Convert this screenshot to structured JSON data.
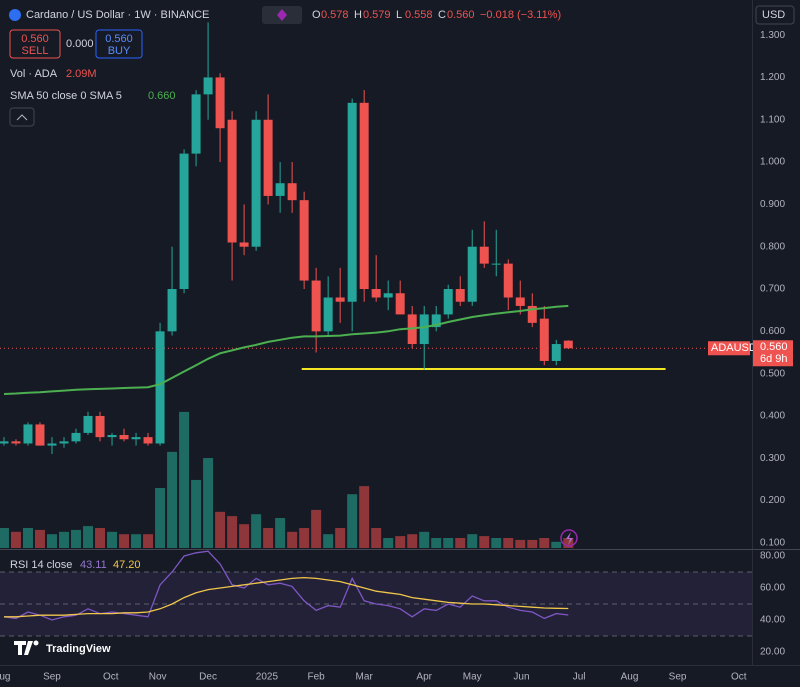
{
  "chart_data": {
    "type": "candlestick",
    "title": "Cardano / US Dollar · 1W · BINANCE",
    "header_fields": [
      {
        "key": "O",
        "label": "0.578"
      },
      {
        "key": "H",
        "label": "0.579"
      },
      {
        "key": "L",
        "label": "0.558"
      },
      {
        "key": "C",
        "label": "0.560"
      }
    ],
    "change": "−0.018 (−3.11%)",
    "sell": {
      "price": "0.560",
      "label": "SELL"
    },
    "spread": "0.000",
    "buy": {
      "price": "0.560",
      "label": "BUY"
    },
    "currency": "USD",
    "categories": [
      null,
      null,
      null,
      null,
      null,
      null,
      null,
      null,
      null,
      null,
      null,
      null,
      null,
      null,
      null,
      null,
      null,
      null,
      null,
      null,
      null,
      null,
      null,
      null,
      null,
      null,
      null,
      null,
      null,
      null,
      null,
      null,
      null,
      null,
      null,
      null,
      null,
      null,
      null,
      null,
      null,
      null,
      null,
      null,
      null,
      null,
      null,
      null
    ],
    "open": [
      0.335,
      0.34,
      0.335,
      0.38,
      0.33,
      0.335,
      0.34,
      0.36,
      0.4,
      0.35,
      0.355,
      0.345,
      0.35,
      0.335,
      0.6,
      0.7,
      1.02,
      1.16,
      1.2,
      1.1,
      0.81,
      0.8,
      1.1,
      0.92,
      0.95,
      0.91,
      0.72,
      0.6,
      0.68,
      0.67,
      1.14,
      0.7,
      0.68,
      0.69,
      0.64,
      0.57,
      0.61,
      0.64,
      0.7,
      0.67,
      0.8,
      0.76,
      0.76,
      0.68,
      0.66,
      0.63,
      0.53,
      0.578
    ],
    "high": [
      0.35,
      0.345,
      0.385,
      0.385,
      0.35,
      0.35,
      0.37,
      0.41,
      0.41,
      0.36,
      0.37,
      0.36,
      0.36,
      0.62,
      0.8,
      1.03,
      1.17,
      1.33,
      1.21,
      1.12,
      0.9,
      1.12,
      1.16,
      1.0,
      1.0,
      0.93,
      0.75,
      0.73,
      0.75,
      1.15,
      1.17,
      0.78,
      0.72,
      0.72,
      0.66,
      0.66,
      0.66,
      0.71,
      0.73,
      0.84,
      0.86,
      0.84,
      0.77,
      0.72,
      0.69,
      0.66,
      0.58,
      0.579
    ],
    "low": [
      0.33,
      0.33,
      0.33,
      0.33,
      0.31,
      0.325,
      0.335,
      0.355,
      0.34,
      0.33,
      0.34,
      0.33,
      0.33,
      0.33,
      0.59,
      0.69,
      0.99,
      1.1,
      1.0,
      0.72,
      0.78,
      0.79,
      0.9,
      0.88,
      0.88,
      0.7,
      0.55,
      0.59,
      0.62,
      0.6,
      0.67,
      0.67,
      0.65,
      0.64,
      0.56,
      0.51,
      0.6,
      0.63,
      0.66,
      0.66,
      0.75,
      0.73,
      0.65,
      0.64,
      0.61,
      0.52,
      0.52,
      0.558
    ],
    "close": [
      0.34,
      0.335,
      0.38,
      0.33,
      0.335,
      0.34,
      0.36,
      0.4,
      0.35,
      0.355,
      0.345,
      0.35,
      0.335,
      0.6,
      0.7,
      1.02,
      1.16,
      1.2,
      1.08,
      0.81,
      0.8,
      1.1,
      0.92,
      0.95,
      0.91,
      0.72,
      0.6,
      0.68,
      0.67,
      1.14,
      0.7,
      0.68,
      0.69,
      0.64,
      0.57,
      0.64,
      0.64,
      0.7,
      0.67,
      0.8,
      0.76,
      0.76,
      0.68,
      0.66,
      0.62,
      0.53,
      0.57,
      0.56
    ],
    "up_color": "#26a69a",
    "down_color": "#ef5350",
    "volume": {
      "name": "Vol · ADA",
      "value_label": "2.09M",
      "up_color": "#1e6b64",
      "down_color": "#8e3639",
      "values": [
        4.2,
        3.4,
        4.2,
        3.8,
        2.9,
        3.4,
        3.8,
        4.6,
        4.2,
        3.4,
        2.9,
        2.9,
        2.9,
        12.6,
        20.2,
        28.6,
        14.3,
        18.9,
        7.6,
        6.7,
        5.0,
        7.1,
        4.2,
        6.3,
        3.4,
        4.2,
        8.0,
        2.9,
        4.2,
        11.3,
        13.0,
        4.2,
        2.1,
        2.5,
        2.9,
        3.4,
        2.1,
        2.1,
        2.1,
        2.9,
        2.5,
        2.1,
        2.1,
        1.7,
        1.7,
        2.1,
        1.3,
        2.09
      ]
    },
    "sma": {
      "name": "SMA 50 close 0 SMA 5",
      "value_label": "0.660",
      "color": "#4caf50",
      "values": [
        0.452,
        0.453,
        0.455,
        0.456,
        0.458,
        0.46,
        0.462,
        0.463,
        0.464,
        0.465,
        0.466,
        0.467,
        0.468,
        0.475,
        0.49,
        0.505,
        0.52,
        0.535,
        0.548,
        0.555,
        0.562,
        0.568,
        0.575,
        0.58,
        0.585,
        0.588,
        0.588,
        0.589,
        0.59,
        0.593,
        0.595,
        0.597,
        0.6,
        0.605,
        0.607,
        0.61,
        0.615,
        0.622,
        0.628,
        0.634,
        0.638,
        0.642,
        0.645,
        0.648,
        0.652,
        0.655,
        0.658,
        0.66
      ]
    },
    "support": {
      "value": 0.511,
      "x": [
        24.8,
        55.1
      ],
      "color": "#f5e625"
    },
    "last_price": {
      "symbol": "ADAUSD",
      "label": "0.560",
      "countdown": "6d 9h"
    },
    "ylim": [
      0.088,
      1.383
    ],
    "yticks": [
      {
        "value": 0.1,
        "label": "0.100"
      },
      {
        "value": 0.2,
        "label": "0.200"
      },
      {
        "value": 0.3,
        "label": "0.300"
      },
      {
        "value": 0.4,
        "label": "0.400"
      },
      {
        "value": 0.5,
        "label": "0.500"
      },
      {
        "value": 0.6,
        "label": "0.600"
      },
      {
        "value": 0.7,
        "label": "0.700"
      },
      {
        "value": 0.8,
        "label": "0.800"
      },
      {
        "value": 0.9,
        "label": "0.900"
      },
      {
        "value": 1.0,
        "label": "1.000"
      },
      {
        "value": 1.1,
        "label": "1.100"
      },
      {
        "value": 1.2,
        "label": "1.200"
      },
      {
        "value": 1.3,
        "label": "1.300"
      }
    ],
    "xlim": [
      -0.33,
      62.3
    ],
    "xticks": [
      {
        "value": 0.08,
        "label": "ug"
      },
      {
        "value": 4.0,
        "label": "Sep"
      },
      {
        "value": 8.9,
        "label": "Oct"
      },
      {
        "value": 12.8,
        "label": "Nov"
      },
      {
        "value": 17.0,
        "label": "Dec"
      },
      {
        "value": 21.9,
        "label": "2025"
      },
      {
        "value": 26.0,
        "label": "Feb"
      },
      {
        "value": 30.0,
        "label": "Mar"
      },
      {
        "value": 35.0,
        "label": "Apr"
      },
      {
        "value": 39.0,
        "label": "May"
      },
      {
        "value": 43.1,
        "label": "Jun"
      },
      {
        "value": 47.9,
        "label": "Jul"
      },
      {
        "value": 52.1,
        "label": "Aug"
      },
      {
        "value": 56.1,
        "label": "Sep"
      },
      {
        "value": 61.2,
        "label": "Oct"
      }
    ],
    "rsi": {
      "name": "RSI 14 close",
      "value_label": "43.11",
      "color": "#7e57c2",
      "values": [
        42,
        41,
        45,
        43,
        40,
        42,
        43,
        47,
        44,
        45,
        44,
        43,
        42,
        62,
        70,
        80,
        82,
        83,
        75,
        62,
        60,
        66,
        62,
        63,
        61,
        52,
        46,
        49,
        48,
        66,
        52,
        50,
        49,
        47,
        42,
        47,
        46,
        50,
        48,
        55,
        52,
        52,
        48,
        46,
        45,
        41,
        44,
        43.11
      ]
    },
    "rsi_ma": {
      "value_label": "47.20",
      "color": "#f0c64a",
      "values": [
        42,
        42,
        42.5,
        43,
        43,
        43,
        43.5,
        44,
        44,
        44,
        44.5,
        44.5,
        45,
        47,
        50,
        54,
        57,
        59,
        60,
        61,
        62,
        63,
        64,
        65,
        66,
        66.5,
        66,
        65,
        64,
        62,
        60,
        58,
        57,
        56,
        54,
        53,
        52,
        51,
        50.5,
        50,
        50,
        49.5,
        49,
        48.5,
        48,
        47.5,
        47.3,
        47.2
      ]
    },
    "rsi_bands": [
      70,
      50,
      30
    ],
    "rsi_lim": [
      11.9,
      83.75
    ],
    "rsi_ticks": [
      {
        "value": 20,
        "label": "20.00"
      },
      {
        "value": 40,
        "label": "40.00"
      },
      {
        "value": 60,
        "label": "60.00"
      },
      {
        "value": 80,
        "label": "80.00"
      }
    ],
    "brand": "TradingView"
  }
}
